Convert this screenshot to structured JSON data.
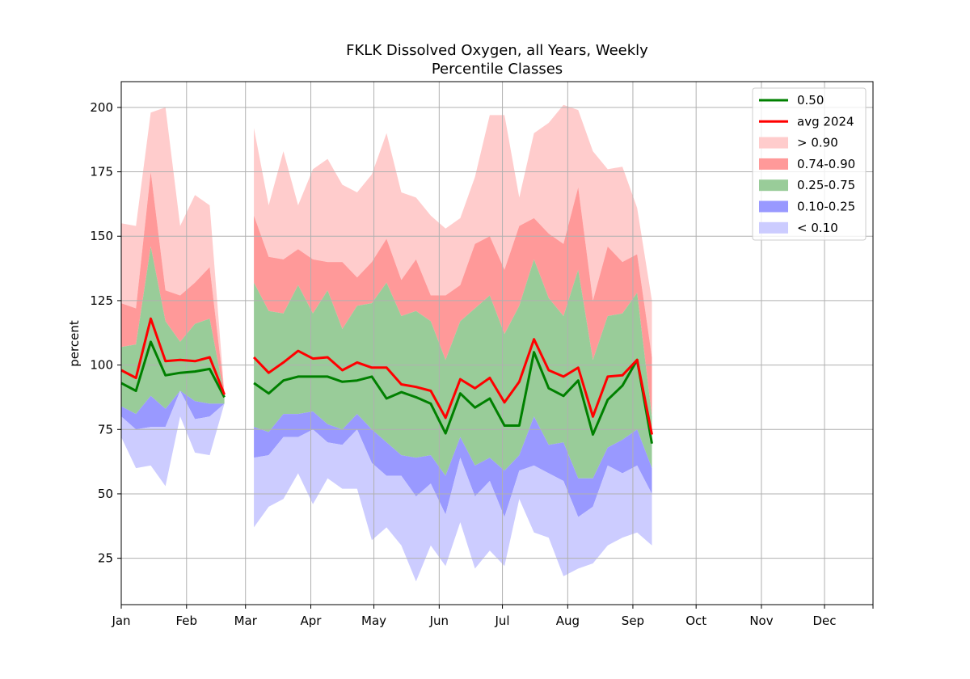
{
  "chart_data": {
    "type": "area",
    "title": "FKLK Dissolved Oxygen, all Years, Weekly",
    "subtitle": "Percentile Classes",
    "xlabel": "",
    "ylabel": "percent",
    "x_unit": "week",
    "xlim": [
      1,
      52
    ],
    "ylim": [
      7,
      210
    ],
    "yticks": [
      25,
      50,
      75,
      100,
      125,
      150,
      175,
      200
    ],
    "xticks": [
      {
        "label": "Jan",
        "week": 1
      },
      {
        "label": "Feb",
        "week": 5.43
      },
      {
        "label": "Mar",
        "week": 9.43
      },
      {
        "label": "Apr",
        "week": 13.86
      },
      {
        "label": "May",
        "week": 18.14
      },
      {
        "label": "Jun",
        "week": 22.57
      },
      {
        "label": "Jul",
        "week": 26.86
      },
      {
        "label": "Aug",
        "week": 31.29
      },
      {
        "label": "Sep",
        "week": 35.71
      },
      {
        "label": "Oct",
        "week": 40
      },
      {
        "label": "Nov",
        "week": 44.43
      },
      {
        "label": "Dec",
        "week": 48.71
      }
    ],
    "grid": true,
    "legend_position": "top-right",
    "legend": [
      {
        "label": "0.50",
        "kind": "line",
        "color": "#008000"
      },
      {
        "label": "avg 2024",
        "kind": "line",
        "color": "#ff0000"
      },
      {
        "label": "> 0.90",
        "kind": "patch",
        "color": "#ffcccc"
      },
      {
        "label": "0.74-0.90",
        "kind": "patch",
        "color": "#ff9999"
      },
      {
        "label": "0.25-0.75",
        "kind": "patch",
        "color": "#99cc99"
      },
      {
        "label": "0.10-0.25",
        "kind": "patch",
        "color": "#9999ff"
      },
      {
        "label": "< 0.10",
        "kind": "patch",
        "color": "#ccccff"
      }
    ],
    "weeks": [
      1,
      2,
      3,
      4,
      5,
      6,
      7,
      8,
      9,
      10,
      11,
      12,
      13,
      14,
      15,
      16,
      17,
      18,
      19,
      20,
      21,
      22,
      23,
      24,
      25,
      26,
      27,
      28,
      29,
      30,
      31,
      32,
      33,
      34,
      35,
      36,
      37,
      38
    ],
    "percentiles": {
      "min": [
        72,
        60,
        61,
        53,
        80,
        66,
        65,
        85,
        null,
        37,
        45,
        48,
        58,
        46,
        56,
        52,
        52,
        32,
        37,
        30,
        16,
        30,
        22,
        39,
        21,
        28,
        22,
        48,
        35,
        33,
        18,
        21,
        23,
        30,
        33,
        35,
        30,
        null
      ],
      "p10": [
        80,
        75,
        76,
        76,
        90,
        79,
        80,
        85,
        null,
        64,
        65,
        72,
        72,
        75,
        70,
        69,
        75,
        62,
        57,
        57,
        49,
        54,
        42,
        64,
        49,
        55,
        41,
        59,
        61,
        58,
        55,
        41,
        45,
        61,
        58,
        61,
        50,
        null
      ],
      "p25": [
        84,
        81,
        88,
        83,
        90,
        86,
        85,
        85,
        null,
        76,
        74,
        81,
        81,
        82,
        77,
        75,
        81,
        75,
        70,
        65,
        64,
        65,
        57,
        72,
        61,
        64,
        59,
        65,
        80,
        69,
        70,
        56,
        56,
        68,
        71,
        75,
        60,
        null
      ],
      "p75": [
        107,
        108,
        146,
        117,
        109,
        116,
        118,
        88,
        null,
        132,
        121,
        120,
        131,
        120,
        129,
        114,
        123,
        124,
        132,
        119,
        121,
        117,
        102,
        117,
        122,
        127,
        112,
        123,
        141,
        126,
        119,
        137,
        102,
        119,
        120,
        128,
        80,
        null
      ],
      "p90": [
        124,
        122,
        175,
        129,
        127,
        132,
        138,
        89,
        null,
        158,
        142,
        141,
        145,
        141,
        140,
        140,
        134,
        140,
        149,
        133,
        141,
        127,
        127,
        131,
        147,
        150,
        137,
        154,
        157,
        151,
        147,
        169,
        125,
        146,
        140,
        143,
        103,
        null
      ],
      "max": [
        155,
        154,
        198,
        200,
        154,
        166,
        162,
        89,
        null,
        192,
        162,
        183,
        162,
        176,
        180,
        170,
        167,
        174,
        190,
        167,
        165,
        158,
        153,
        157,
        173,
        197,
        197,
        165,
        190,
        194,
        201,
        199,
        183,
        176,
        177,
        161,
        125,
        null
      ],
      "p50": [
        93,
        90,
        109,
        96,
        97,
        97.5,
        98.5,
        87.5,
        null,
        93,
        89,
        94,
        95.5,
        95.5,
        95.5,
        93.5,
        94,
        95.5,
        87,
        89.5,
        87.5,
        85,
        73.5,
        89,
        83.5,
        87,
        76.5,
        76.5,
        105,
        91,
        88,
        94,
        73,
        86.5,
        92,
        102,
        69.5,
        null
      ]
    },
    "series": [
      {
        "name": "avg 2024",
        "values": [
          98,
          95,
          118,
          101.5,
          102,
          101.5,
          103,
          88.5,
          null,
          103,
          97,
          101,
          105.5,
          102.5,
          103,
          98,
          101,
          99,
          99,
          92.5,
          91.5,
          90,
          79.5,
          94.5,
          91,
          95,
          85.5,
          93.5,
          110,
          98,
          95.5,
          99,
          80,
          95.5,
          96,
          102,
          73,
          null
        ]
      }
    ]
  }
}
